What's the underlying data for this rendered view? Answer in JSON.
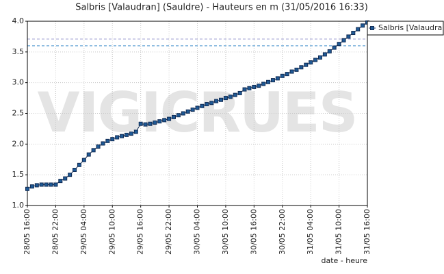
{
  "chart_data": {
    "type": "line",
    "title": "Salbris [Valaudran] (Sauldre) - Hauteurs en m (31/05/2016 16:33)",
    "x_label": "date - heure",
    "watermark": "VIGICRUES",
    "categories": [
      "28/05 16:00",
      null,
      null,
      null,
      null,
      null,
      "28/05 22:00",
      null,
      null,
      null,
      null,
      null,
      "29/05 04:00",
      null,
      null,
      null,
      null,
      null,
      "29/05 10:00",
      null,
      null,
      null,
      null,
      null,
      "29/05 16:00",
      null,
      null,
      null,
      null,
      null,
      "29/05 22:00",
      null,
      null,
      null,
      null,
      null,
      "30/05 04:00",
      null,
      null,
      null,
      null,
      null,
      "30/05 10:00",
      null,
      null,
      null,
      null,
      null,
      "30/05 16:00",
      null,
      null,
      null,
      null,
      null,
      "30/05 22:00",
      null,
      null,
      null,
      null,
      null,
      "31/05 04:00",
      null,
      null,
      null,
      null,
      null,
      "31/05 10:00",
      null,
      null,
      null,
      null,
      null,
      "31/05 16:00"
    ],
    "series": [
      {
        "name": "Salbris [Valaudra",
        "color": "#1f5a96",
        "values": [
          1.27,
          1.31,
          1.33,
          1.34,
          1.34,
          1.34,
          1.34,
          1.4,
          1.44,
          1.5,
          1.58,
          1.66,
          1.74,
          1.83,
          1.9,
          1.96,
          2.01,
          2.05,
          2.08,
          2.11,
          2.13,
          2.15,
          2.17,
          2.2,
          2.33,
          2.32,
          2.33,
          2.35,
          2.37,
          2.39,
          2.41,
          2.44,
          2.47,
          2.5,
          2.53,
          2.56,
          2.59,
          2.62,
          2.65,
          2.67,
          2.7,
          2.72,
          2.75,
          2.77,
          2.8,
          2.83,
          2.89,
          2.91,
          2.93,
          2.95,
          2.98,
          3.01,
          3.04,
          3.07,
          3.11,
          3.14,
          3.18,
          3.21,
          3.25,
          3.29,
          3.33,
          3.37,
          3.41,
          3.46,
          3.51,
          3.57,
          3.63,
          3.69,
          3.75,
          3.81,
          3.87,
          3.93,
          3.98
        ]
      }
    ],
    "reference_lines": [
      {
        "value": 3.71,
        "color": "#9f9fd0"
      },
      {
        "value": 3.6,
        "color": "#3d8ec9"
      }
    ],
    "ylim": [
      1.0,
      4.0
    ],
    "yticks": [
      {
        "value": 1.0,
        "label": "1.0"
      },
      {
        "value": 1.5,
        "label": "1.5"
      },
      {
        "value": 2.0,
        "label": "2.0"
      },
      {
        "value": 2.5,
        "label": "2.5"
      },
      {
        "value": 3.0,
        "label": "3.0"
      },
      {
        "value": 3.5,
        "label": "3.5"
      },
      {
        "value": 4.0,
        "label": "4.0"
      }
    ],
    "grid": true
  }
}
